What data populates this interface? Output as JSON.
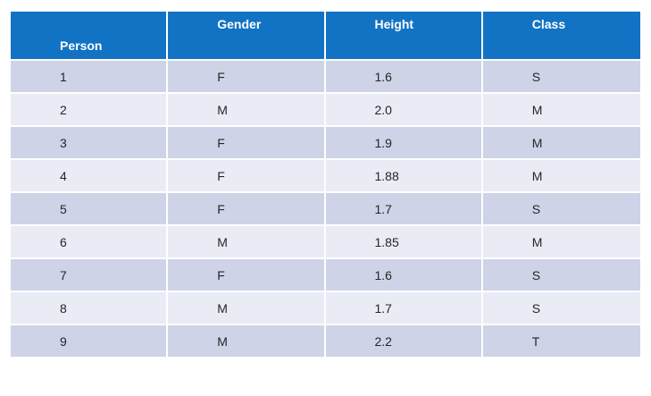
{
  "chart_data": {
    "type": "table",
    "columns": [
      "Person",
      "Gender",
      "Height",
      "Class"
    ],
    "rows": [
      [
        "1",
        "F",
        "1.6",
        "S"
      ],
      [
        "2",
        "M",
        "2.0",
        "M"
      ],
      [
        "3",
        "F",
        "1.9",
        "M"
      ],
      [
        "4",
        "F",
        "1.88",
        "M"
      ],
      [
        "5",
        "F",
        "1.7",
        "S"
      ],
      [
        "6",
        "M",
        "1.85",
        "M"
      ],
      [
        "7",
        "F",
        "1.6",
        "S"
      ],
      [
        "8",
        "M",
        "1.7",
        "S"
      ],
      [
        "9",
        "M",
        "2.2",
        "T"
      ]
    ]
  },
  "colors": {
    "header_bg": "#1273C4",
    "header_text": "#FFFFFF",
    "row_band_dark": "#CED3E7",
    "row_band_light": "#E9EBF5",
    "cell_text": "#262626",
    "separator": "#FFFFFF"
  }
}
